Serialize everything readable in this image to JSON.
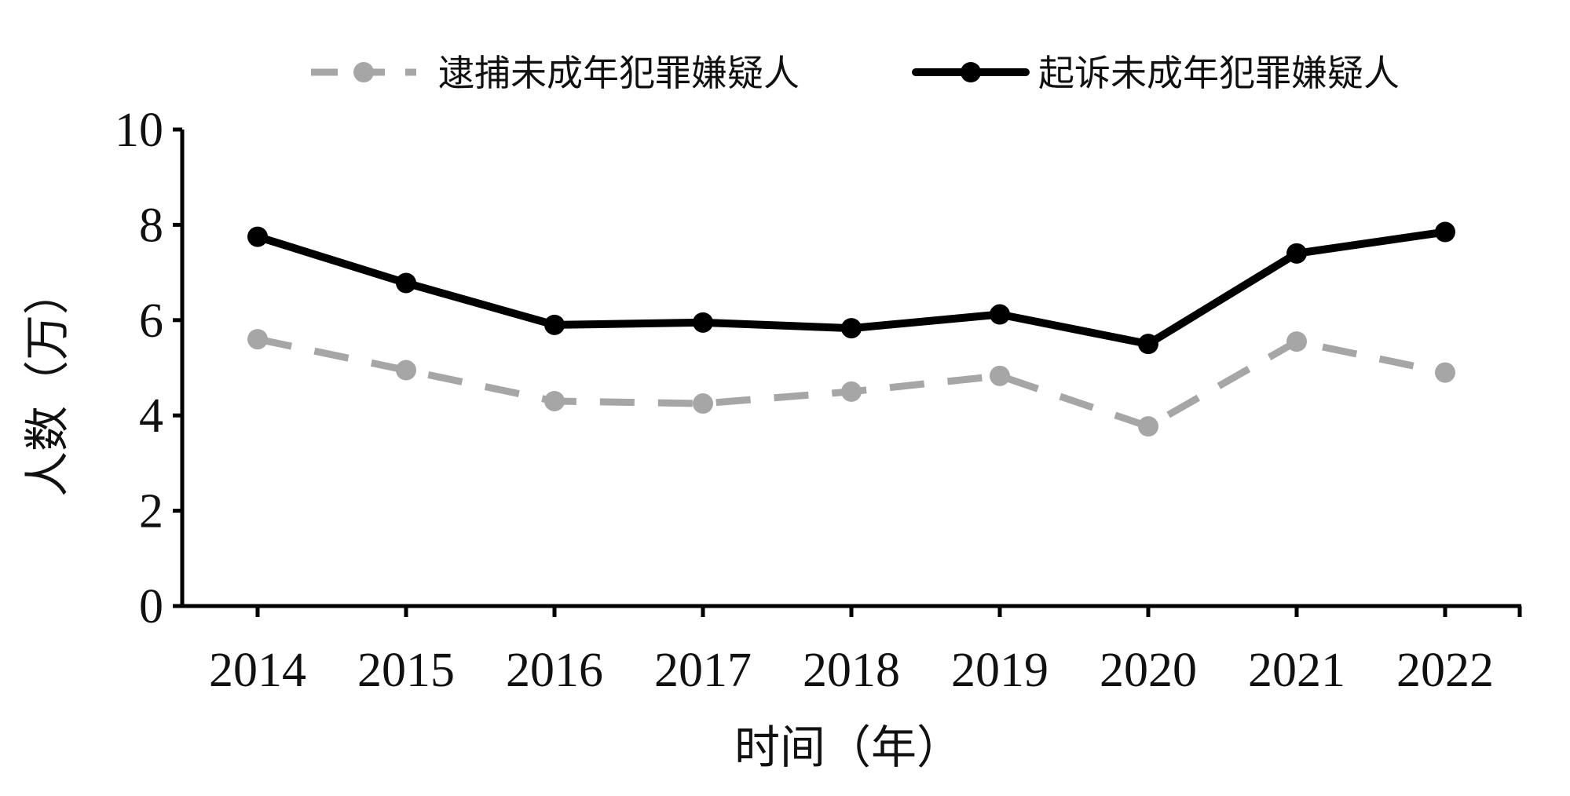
{
  "chart_data": {
    "type": "line",
    "x": [
      "2014",
      "2015",
      "2016",
      "2017",
      "2018",
      "2019",
      "2020",
      "2021",
      "2022"
    ],
    "series": [
      {
        "name": "逮捕未成年犯罪嫌疑人",
        "values": [
          5.6,
          4.95,
          4.3,
          4.25,
          4.5,
          4.83,
          3.77,
          5.55,
          4.9
        ],
        "color": "#a6a6a6",
        "dashed": true
      },
      {
        "name": "起诉未成年犯罪嫌疑人",
        "values": [
          7.75,
          6.78,
          5.9,
          5.95,
          5.83,
          6.12,
          5.5,
          7.4,
          7.85
        ],
        "color": "#000000",
        "dashed": false
      }
    ],
    "xlabel": "时间（年）",
    "ylabel": "人数（万）",
    "ylim": [
      0,
      10
    ],
    "yticks": [
      "0",
      "2",
      "4",
      "6",
      "8",
      "10"
    ],
    "grid": false,
    "legend_position": "top"
  }
}
